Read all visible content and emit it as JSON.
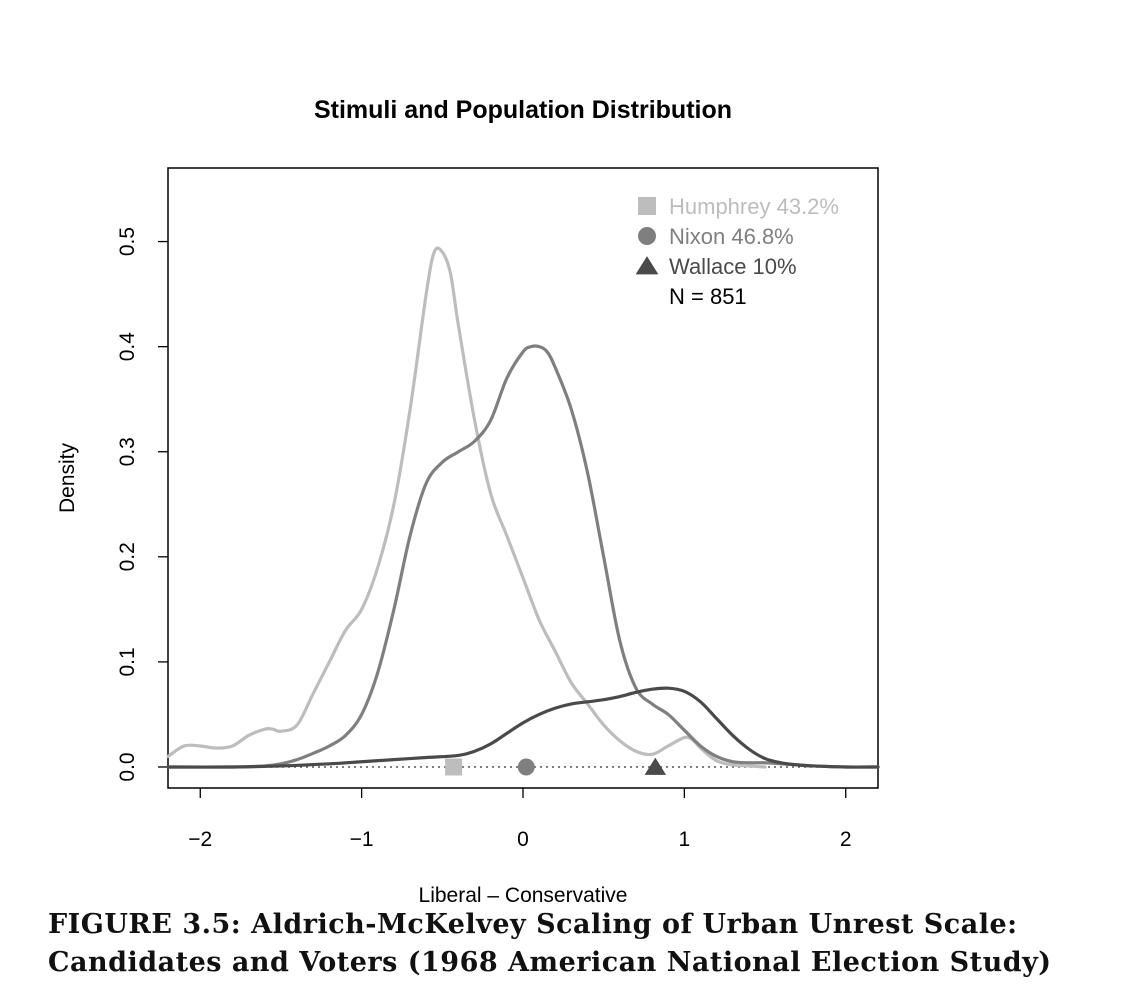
{
  "chart_data": {
    "type": "line",
    "title": "Stimuli and Population Distribution",
    "xlabel": "Liberal – Conservative",
    "ylabel": "Density",
    "xlim": [
      -2.2,
      2.2
    ],
    "ylim": [
      -0.02,
      0.57
    ],
    "xticks": [
      -2,
      -1,
      0,
      1,
      2
    ],
    "xtick_labels": [
      "−2",
      "−1",
      "0",
      "1",
      "2"
    ],
    "yticks": [
      0.0,
      0.1,
      0.2,
      0.3,
      0.4,
      0.5
    ],
    "ytick_labels": [
      "0.0",
      "0.1",
      "0.2",
      "0.3",
      "0.4",
      "0.5"
    ],
    "grid": false,
    "legend_position": "top-right",
    "series": [
      {
        "name": "Humphrey 43.2%",
        "color": "#bdbdbd",
        "marker": "square",
        "stimulus_position": -0.43,
        "x": [
          -2.2,
          -2.1,
          -2.0,
          -1.9,
          -1.8,
          -1.7,
          -1.6,
          -1.55,
          -1.5,
          -1.4,
          -1.3,
          -1.2,
          -1.1,
          -1.0,
          -0.9,
          -0.8,
          -0.7,
          -0.6,
          -0.55,
          -0.5,
          -0.45,
          -0.4,
          -0.3,
          -0.2,
          -0.1,
          0.0,
          0.1,
          0.2,
          0.3,
          0.4,
          0.5,
          0.6,
          0.7,
          0.8,
          0.9,
          1.0,
          1.05,
          1.1,
          1.2,
          1.3,
          1.4,
          1.5
        ],
        "y": [
          0.01,
          0.02,
          0.02,
          0.018,
          0.02,
          0.03,
          0.036,
          0.036,
          0.034,
          0.04,
          0.07,
          0.1,
          0.13,
          0.15,
          0.19,
          0.25,
          0.34,
          0.45,
          0.49,
          0.49,
          0.47,
          0.42,
          0.33,
          0.26,
          0.22,
          0.18,
          0.14,
          0.11,
          0.08,
          0.06,
          0.04,
          0.025,
          0.015,
          0.012,
          0.02,
          0.028,
          0.026,
          0.018,
          0.006,
          0.002,
          0.001,
          0.0
        ]
      },
      {
        "name": "Nixon 46.8%",
        "color": "#7f7f7f",
        "marker": "circle",
        "stimulus_position": 0.02,
        "x": [
          -2.2,
          -1.8,
          -1.6,
          -1.5,
          -1.4,
          -1.3,
          -1.2,
          -1.1,
          -1.0,
          -0.9,
          -0.8,
          -0.7,
          -0.6,
          -0.5,
          -0.4,
          -0.3,
          -0.2,
          -0.1,
          0.0,
          0.05,
          0.1,
          0.15,
          0.2,
          0.3,
          0.4,
          0.5,
          0.6,
          0.7,
          0.8,
          0.9,
          1.0,
          1.1,
          1.2,
          1.3,
          1.4,
          1.5,
          1.6,
          1.7,
          1.8,
          2.0,
          2.2
        ],
        "y": [
          0.0,
          0.0,
          0.001,
          0.003,
          0.007,
          0.013,
          0.02,
          0.03,
          0.05,
          0.09,
          0.15,
          0.22,
          0.27,
          0.29,
          0.3,
          0.31,
          0.33,
          0.37,
          0.395,
          0.4,
          0.4,
          0.395,
          0.38,
          0.34,
          0.28,
          0.2,
          0.12,
          0.075,
          0.06,
          0.05,
          0.035,
          0.02,
          0.01,
          0.005,
          0.004,
          0.004,
          0.003,
          0.002,
          0.001,
          0.0,
          0.0
        ]
      },
      {
        "name": "Wallace 10%",
        "color": "#4a4a4a",
        "marker": "triangle",
        "stimulus_position": 0.82,
        "x": [
          -2.2,
          -1.8,
          -1.5,
          -1.2,
          -1.0,
          -0.8,
          -0.6,
          -0.4,
          -0.3,
          -0.2,
          -0.1,
          0.0,
          0.1,
          0.2,
          0.3,
          0.4,
          0.5,
          0.6,
          0.7,
          0.8,
          0.9,
          1.0,
          1.1,
          1.2,
          1.3,
          1.4,
          1.5,
          1.6,
          1.7,
          1.8,
          2.0,
          2.2
        ],
        "y": [
          0.0,
          0.0,
          0.001,
          0.003,
          0.005,
          0.007,
          0.009,
          0.011,
          0.015,
          0.022,
          0.032,
          0.042,
          0.05,
          0.056,
          0.06,
          0.062,
          0.064,
          0.067,
          0.071,
          0.074,
          0.075,
          0.072,
          0.062,
          0.046,
          0.03,
          0.017,
          0.008,
          0.004,
          0.002,
          0.001,
          0.0,
          0.0
        ]
      }
    ],
    "legend_note": "N = 851"
  },
  "caption": {
    "line1": "FIGURE 3.5:  Aldrich-McKelvey Scaling of Urban Unrest Scale:",
    "line2": "Candidates and Voters (1968 American National Election Study)"
  }
}
